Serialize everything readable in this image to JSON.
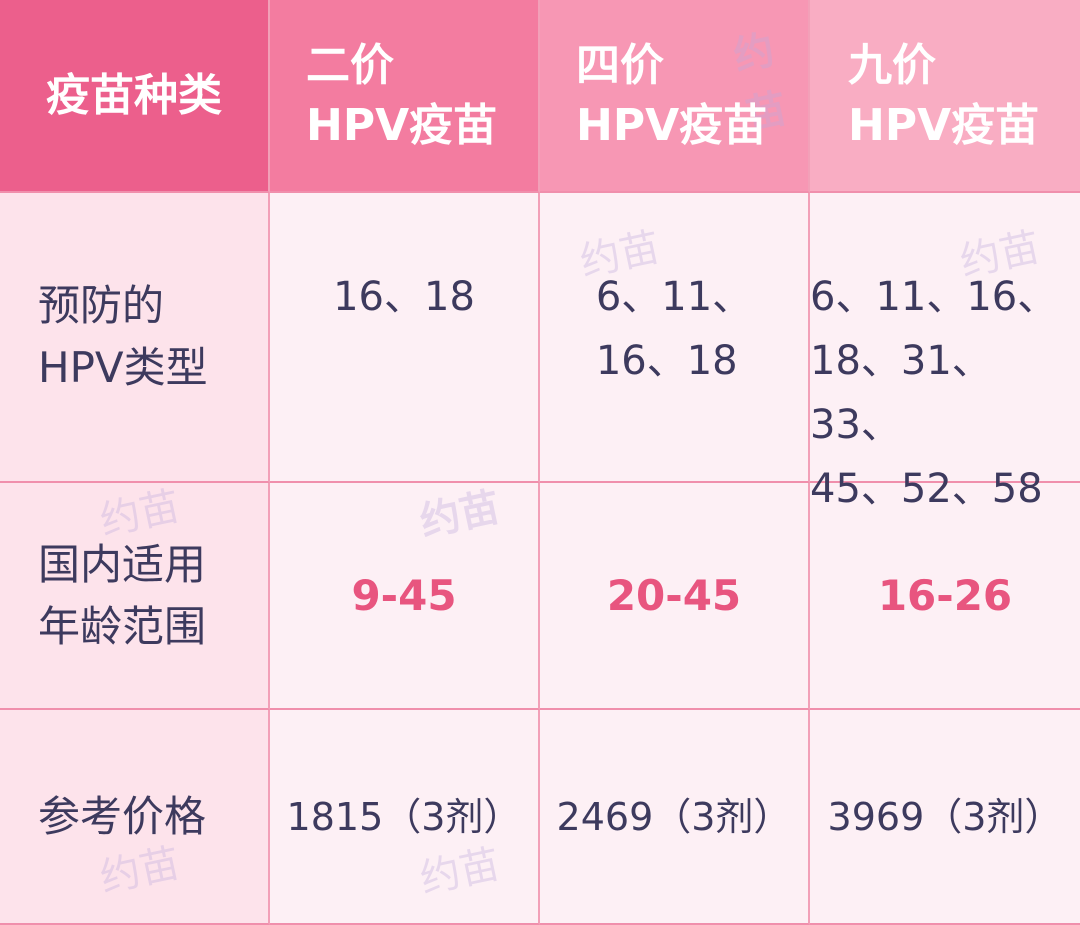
{
  "watermark": "约苗",
  "header": [
    "疫苗种类",
    "二价\nHPV疫苗",
    "四价\nHPV疫苗",
    "九价\nHPV疫苗"
  ],
  "rows": [
    {
      "label": "预防的\nHPV类型",
      "values": [
        "16、18",
        "6、11、\n16、18",
        "6、11、16、\n18、31、33、\n45、52、58"
      ]
    },
    {
      "label": "国内适用\n年龄范围",
      "values": [
        "9-45",
        "20-45",
        "16-26"
      ]
    },
    {
      "label": "参考价格",
      "values": [
        "1815（3剂）",
        "2469（3剂）",
        "3969（3剂）"
      ]
    }
  ],
  "colors": {
    "header_1": "#ec5f8c",
    "header_2": "#f37ca0",
    "header_3": "#f797b4",
    "header_4": "#f9adc3",
    "age_text": "#e8557f",
    "body_text": "#3d3a5e"
  }
}
